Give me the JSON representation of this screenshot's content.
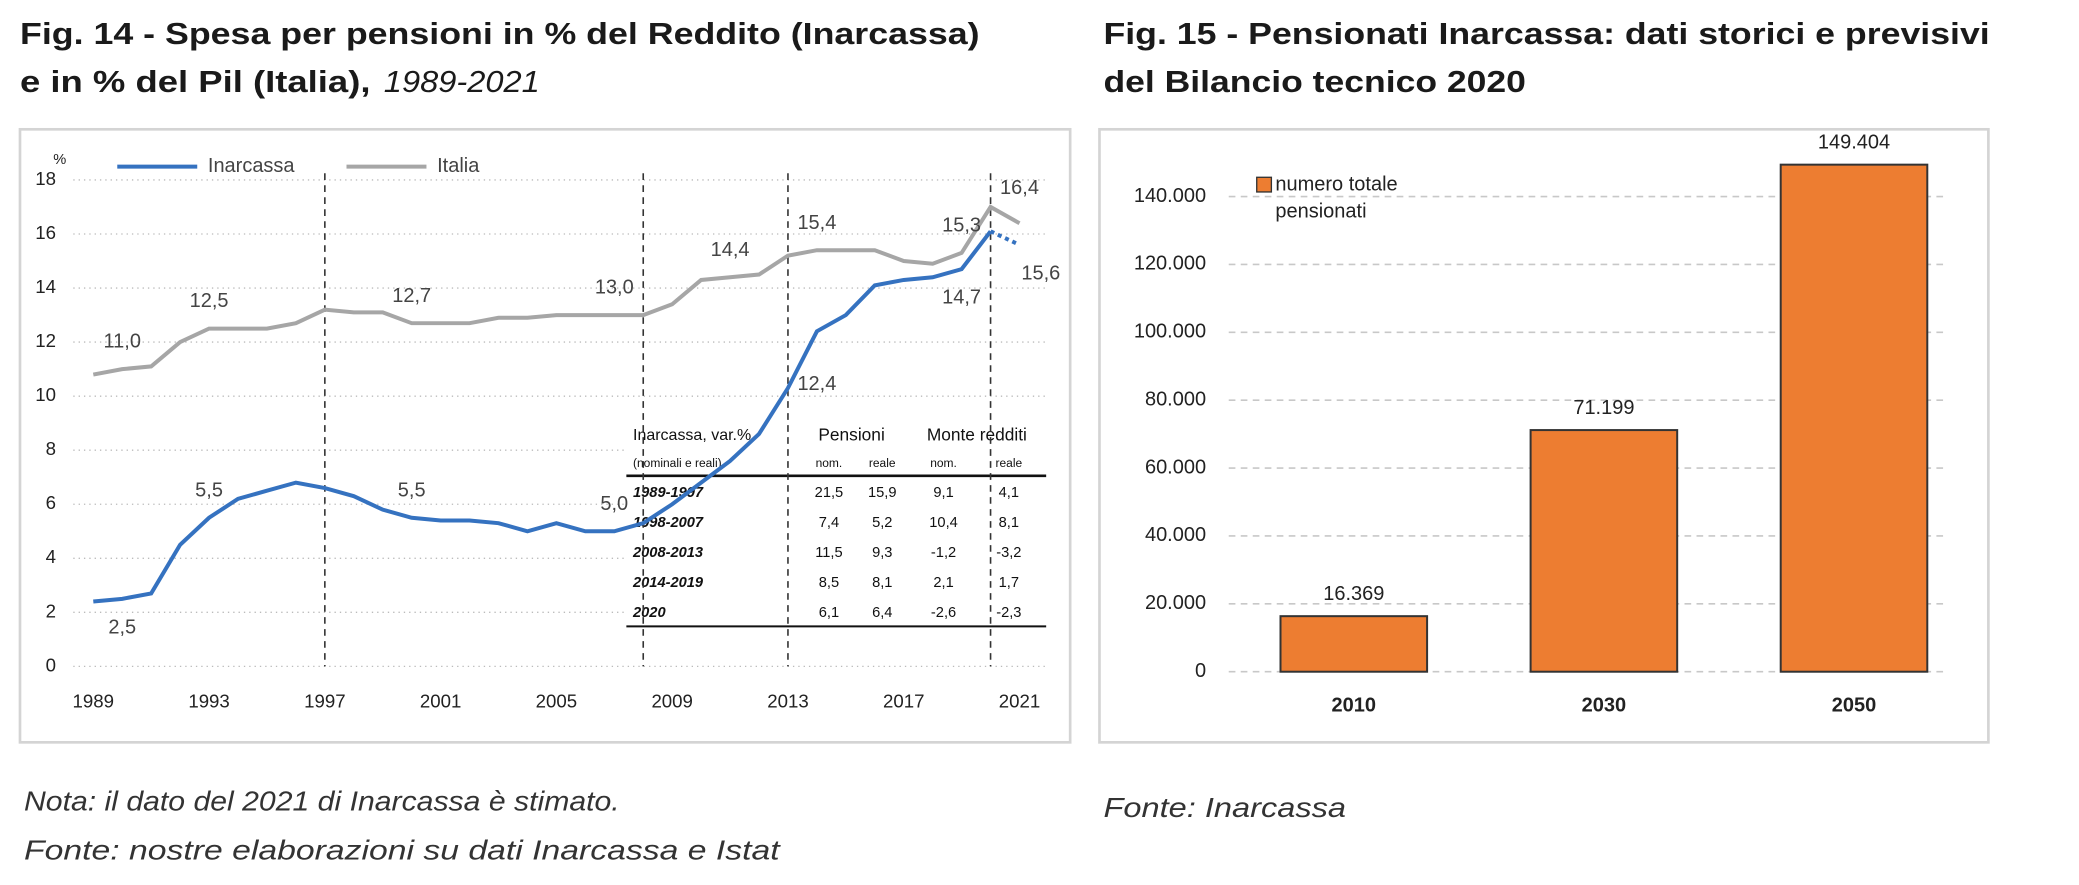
{
  "chart_data": [
    {
      "type": "line",
      "title": [
        "Fig. 14 - Spesa per pensioni in % del Reddito (Inarcassa)",
        "e in % del Pil (Italia),"
      ],
      "subtitle": "1989-2021",
      "y_unit": "%",
      "x": [
        1989,
        1990,
        1991,
        1992,
        1993,
        1994,
        1995,
        1996,
        1997,
        1998,
        1999,
        2000,
        2001,
        2002,
        2003,
        2004,
        2005,
        2006,
        2007,
        2008,
        2009,
        2010,
        2011,
        2012,
        2013,
        2014,
        2015,
        2016,
        2017,
        2018,
        2019,
        2020,
        2021
      ],
      "series": [
        {
          "name": "Inarcassa",
          "color": "#3572c0",
          "dashed_from": 2020,
          "values": [
            2.4,
            2.5,
            2.7,
            4.5,
            5.5,
            6.2,
            6.5,
            6.8,
            6.6,
            6.3,
            5.8,
            5.5,
            5.4,
            5.4,
            5.3,
            5.0,
            5.3,
            5.0,
            5.0,
            5.3,
            6.0,
            6.8,
            7.6,
            8.6,
            10.3,
            12.4,
            13.0,
            14.1,
            14.3,
            14.4,
            14.7,
            16.1,
            15.6
          ],
          "value_labels": [
            null,
            "2,5",
            null,
            null,
            "5,5",
            null,
            null,
            null,
            null,
            null,
            null,
            "5,5",
            null,
            null,
            null,
            null,
            null,
            null,
            "5,0",
            null,
            null,
            null,
            null,
            null,
            null,
            "12,4",
            null,
            null,
            null,
            null,
            "14,7",
            null,
            "15,6"
          ]
        },
        {
          "name": "Italia",
          "color": "#a6a6a6",
          "values": [
            10.8,
            11.0,
            11.1,
            12.0,
            12.5,
            12.5,
            12.5,
            12.7,
            13.2,
            13.1,
            13.1,
            12.7,
            12.7,
            12.7,
            12.9,
            12.9,
            13.0,
            13.0,
            13.0,
            13.0,
            13.4,
            14.3,
            14.4,
            14.5,
            15.2,
            15.4,
            15.4,
            15.4,
            15.0,
            14.9,
            15.3,
            17.0,
            16.4
          ],
          "value_labels": [
            null,
            "11,0",
            null,
            null,
            "12,5",
            null,
            null,
            null,
            null,
            null,
            null,
            "12,7",
            null,
            null,
            null,
            null,
            null,
            null,
            "13,0",
            null,
            null,
            null,
            "14,4",
            null,
            null,
            "15,4",
            null,
            null,
            null,
            null,
            "15,3",
            null,
            "16,4"
          ]
        }
      ],
      "xlim": [
        1989,
        2021
      ],
      "xticks": [
        1989,
        1993,
        1997,
        2001,
        2005,
        2009,
        2013,
        2017,
        2021
      ],
      "ylim": [
        0,
        18
      ],
      "yticks": [
        0,
        2,
        4,
        6,
        8,
        10,
        12,
        14,
        16,
        18
      ],
      "grid": true,
      "vlines": [
        1997,
        2008,
        2013,
        2020
      ],
      "table": {
        "header": [
          "Inarcassa, var.%",
          "Pensioni",
          "Monte redditi"
        ],
        "subheader": [
          "(nominali e reali)",
          "nom.",
          "reale",
          "nom.",
          "reale"
        ],
        "rows": [
          [
            "1989-1997",
            "21,5",
            "15,9",
            "9,1",
            "4,1"
          ],
          [
            "1998-2007",
            "7,4",
            "5,2",
            "10,4",
            "8,1"
          ],
          [
            "2008-2013",
            "11,5",
            "9,3",
            "-1,2",
            "-3,2"
          ],
          [
            "2014-2019",
            "8,5",
            "8,1",
            "2,1",
            "1,7"
          ],
          [
            "2020",
            "6,1",
            "6,4",
            "-2,6",
            "-2,3"
          ]
        ]
      },
      "note": "Nota: il dato del 2021 di Inarcassa è stimato.",
      "source": "Fonte: nostre elaborazioni su dati Inarcassa e Istat"
    },
    {
      "type": "bar",
      "title": [
        "Fig. 15 - Pensionati Inarcassa: dati storici e previsivi",
        "del Bilancio tecnico 2020"
      ],
      "categories": [
        "2010",
        "2030",
        "2050"
      ],
      "series": [
        {
          "name": "numero totale pensionati",
          "color": "#ed7d31",
          "values": [
            16369,
            71199,
            149404
          ],
          "value_labels": [
            "16.369",
            "71.199",
            "149.404"
          ]
        }
      ],
      "ylim": [
        0,
        150000
      ],
      "yticks": [
        0,
        {
          "value": 20000,
          "label": "20.000"
        },
        {
          "value": 40000,
          "label": "40.000"
        },
        {
          "value": 60000,
          "label": "60.000"
        },
        {
          "value": 80000,
          "label": "80.000"
        },
        {
          "value": 100000,
          "label": "100.000"
        },
        {
          "value": 120000,
          "label": "120.000"
        },
        {
          "value": 140000,
          "label": "140.000"
        }
      ],
      "grid": true,
      "source": "Fonte: Inarcassa"
    }
  ]
}
